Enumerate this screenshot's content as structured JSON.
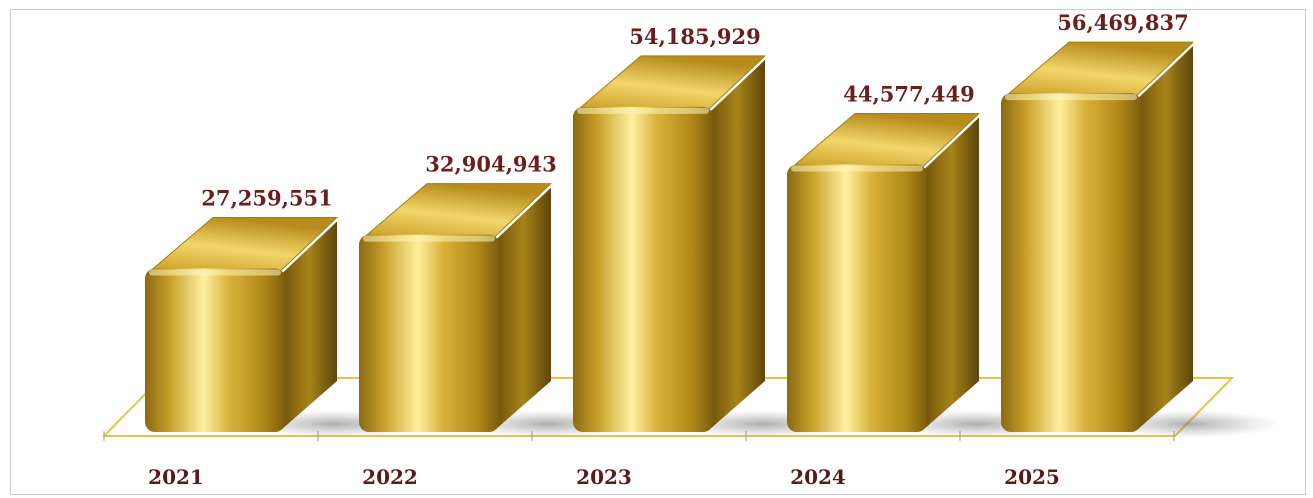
{
  "chart_data": {
    "type": "bar",
    "style": "3d-gold",
    "categories": [
      "2021",
      "2022",
      "2023",
      "2024",
      "2025"
    ],
    "values": [
      27259551,
      32904943,
      54185929,
      44577449,
      56469837
    ],
    "value_labels": [
      "27,259,551",
      "32,904,943",
      "54,185,929",
      "44,577,449",
      "56,469,837"
    ],
    "title": "",
    "xlabel": "",
    "ylabel": "",
    "ylim": [
      0,
      60000000
    ],
    "grid": false,
    "legend": "none",
    "colors": {
      "bar_highlight": "#fff3b0",
      "bar_light": "#e6c34a",
      "bar_mid": "#c49a1f",
      "bar_dark": "#7a5a0c",
      "floor_line": "#e8c24a",
      "label": "#6b1e1e"
    }
  }
}
